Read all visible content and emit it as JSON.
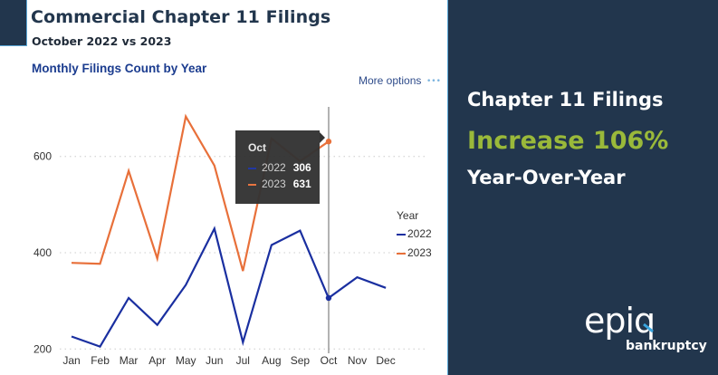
{
  "header": {
    "title": "Commercial Chapter 11 Filings",
    "subtitle": "October 2022 vs 2023"
  },
  "visual": {
    "title": "Monthly Filings Count by Year",
    "more_options_label": "More options",
    "more_options_icon": "ellipsis-icon"
  },
  "tooltip": {
    "title": "Oct",
    "rows": [
      {
        "label": "2022",
        "value": "306",
        "color": "#1a2fa0"
      },
      {
        "label": "2023",
        "value": "631",
        "color": "#e8703a"
      }
    ]
  },
  "legend": {
    "title": "Year",
    "items": [
      {
        "label": "2022",
        "color": "#1a2fa0"
      },
      {
        "label": "2023",
        "color": "#e8703a"
      }
    ]
  },
  "panel": {
    "line1": "Chapter 11 Filings",
    "line2": "Increase 106%",
    "line3": "Year-Over-Year",
    "accent_color": "#9ab93a",
    "background_color": "#22364d"
  },
  "logo": {
    "wordmark": "epiq",
    "sub": "bankruptcy"
  },
  "chart_data": {
    "type": "line",
    "title": "Monthly Filings Count by Year",
    "xlabel": "",
    "ylabel": "",
    "categories": [
      "Jan",
      "Feb",
      "Mar",
      "Apr",
      "May",
      "Jun",
      "Jul",
      "Aug",
      "Sep",
      "Oct",
      "Nov",
      "Dec"
    ],
    "series": [
      {
        "name": "2022",
        "color": "#1a2fa0",
        "values": [
          226,
          205,
          306,
          250,
          333,
          450,
          214,
          416,
          446,
          306,
          349,
          327
        ]
      },
      {
        "name": "2023",
        "color": "#e8703a",
        "values": [
          379,
          377,
          570,
          388,
          683,
          581,
          362,
          637,
          590,
          631,
          null,
          null
        ]
      }
    ],
    "yticks": [
      200,
      400,
      600
    ],
    "ylim": [
      200,
      700
    ],
    "grid": "horizontal dotted",
    "legend_position": "right",
    "highlight": {
      "category": "Oct",
      "values": {
        "2022": 306,
        "2023": 631
      }
    }
  }
}
